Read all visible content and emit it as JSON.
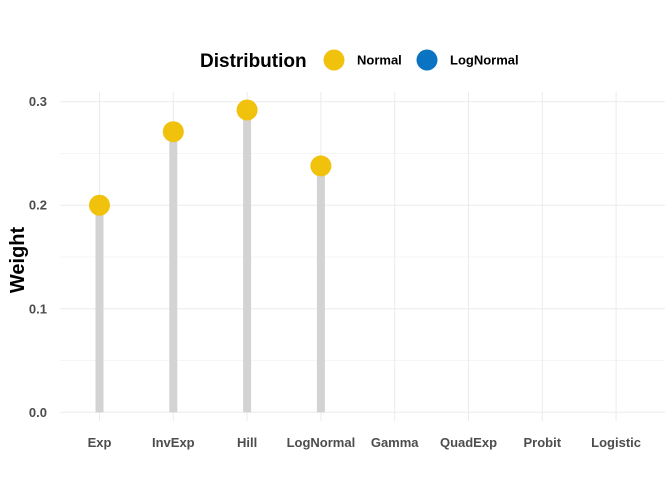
{
  "chart_data": {
    "type": "lollipop",
    "ylabel": "Weight",
    "xlabel": "",
    "ylim": [
      0,
      0.3
    ],
    "yticks": [
      0.0,
      0.1,
      0.2,
      0.3
    ],
    "ytick_labels": [
      "0.0",
      "0.1",
      "0.2",
      "0.3"
    ],
    "categories": [
      "Exp",
      "InvExp",
      "Hill",
      "LogNormal",
      "Gamma",
      "QuadExp",
      "Probit",
      "Logistic"
    ],
    "legend": {
      "title": "Distribution",
      "position": "top",
      "entries": [
        {
          "name": "Normal",
          "color": "#F0C20C"
        },
        {
          "name": "LogNormal",
          "color": "#0A73C2"
        }
      ]
    },
    "series": [
      {
        "name": "Normal",
        "color": "#F0C20C",
        "values": [
          0.2,
          0.271,
          0.292,
          0.238,
          null,
          null,
          null,
          null
        ]
      },
      {
        "name": "LogNormal",
        "color": "#0A73C2",
        "values": [
          null,
          null,
          null,
          null,
          null,
          null,
          null,
          null
        ]
      }
    ],
    "stem_color": "#D3D3D3",
    "grid": true
  }
}
